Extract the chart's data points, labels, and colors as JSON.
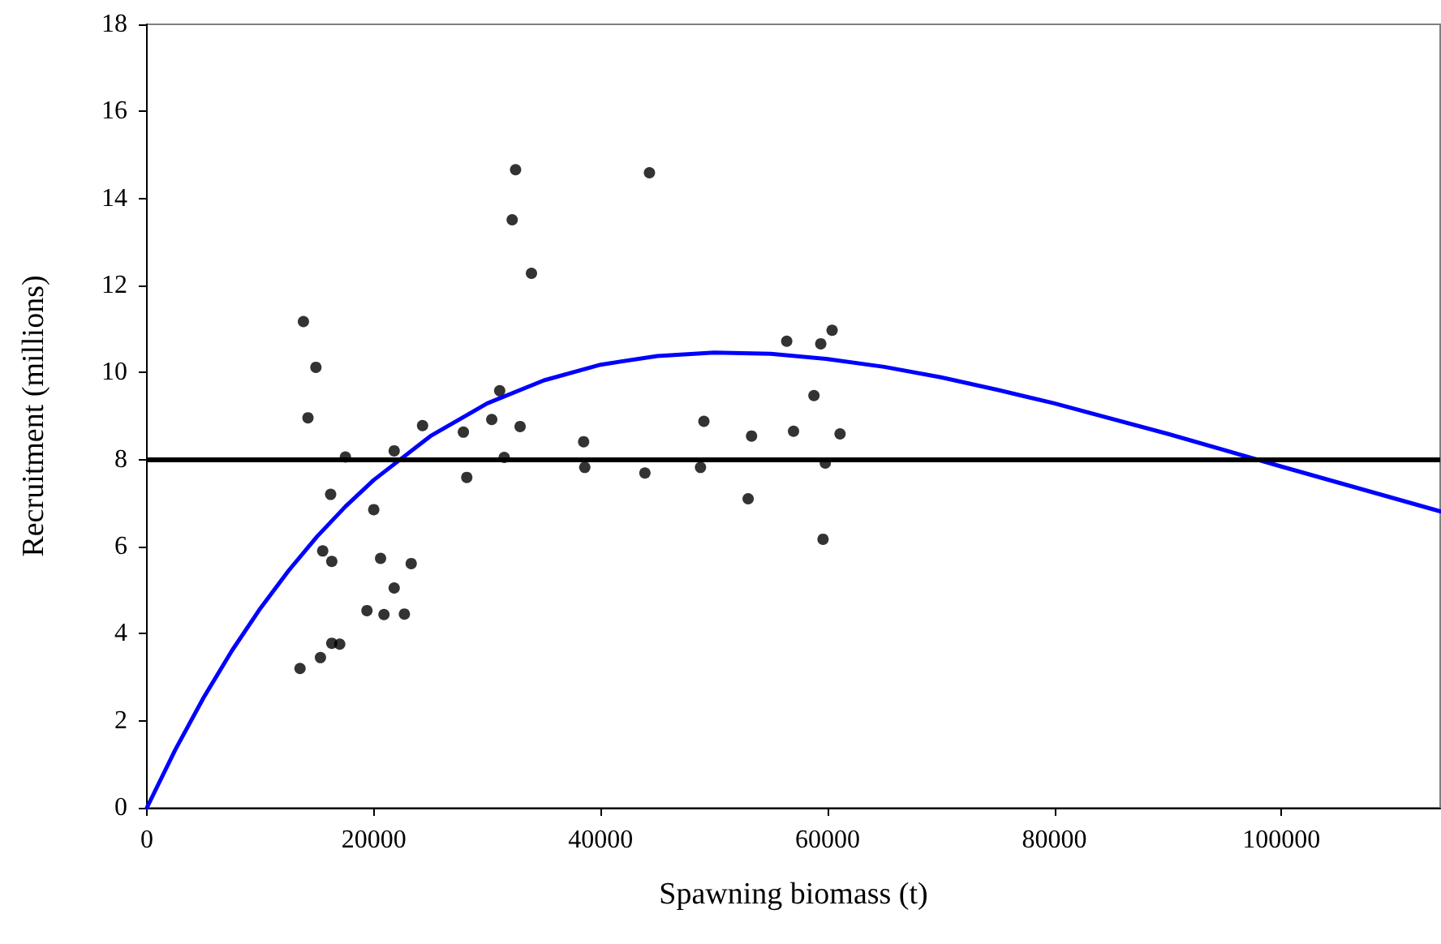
{
  "chart_data": {
    "type": "scatter",
    "xlabel": "Spawning biomass (t)",
    "ylabel": "Recruitment (millions)",
    "xlim": [
      0,
      114000
    ],
    "ylim": [
      0,
      18
    ],
    "xticks": [
      0,
      20000,
      40000,
      60000,
      80000,
      100000
    ],
    "yticks": [
      0,
      2,
      4,
      6,
      8,
      10,
      12,
      14,
      16,
      18
    ],
    "grid": false,
    "ref_lines": [
      {
        "axis": "y",
        "value": 8,
        "color": "#000000"
      }
    ],
    "series": [
      {
        "color": "#000000",
        "marker": "circle",
        "x": [
          13800,
          14900,
          14200,
          17500,
          21800,
          24300,
          27900,
          28200,
          16200,
          20000,
          15500,
          16300,
          20600,
          23300,
          21800,
          19400,
          20900,
          22700,
          16300,
          17000,
          13500,
          15300,
          32500,
          32200,
          33900,
          44300,
          30400,
          31100,
          32900,
          31500,
          38500,
          38600,
          43900,
          48800,
          49100,
          53300,
          53000,
          56400,
          57000,
          58800,
          59400,
          60400,
          61100,
          59800,
          59600
        ],
        "values": [
          11.17,
          10.12,
          8.96,
          8.06,
          8.2,
          8.78,
          8.63,
          7.59,
          7.2,
          6.85,
          5.9,
          5.66,
          5.73,
          5.61,
          5.05,
          4.53,
          4.44,
          4.45,
          3.78,
          3.76,
          3.2,
          3.45,
          14.66,
          13.51,
          12.28,
          14.59,
          8.92,
          9.58,
          8.76,
          8.05,
          8.41,
          7.82,
          7.69,
          7.82,
          8.88,
          8.54,
          7.1,
          10.72,
          8.65,
          9.47,
          10.66,
          10.97,
          8.59,
          7.92,
          6.17
        ]
      },
      {
        "type": "line",
        "color": "#0000ff",
        "marker": "none",
        "x": [
          0,
          2500,
          5000,
          7500,
          10000,
          12500,
          15000,
          17500,
          20000,
          25000,
          30000,
          35000,
          40000,
          45000,
          50000,
          55000,
          60000,
          65000,
          70000,
          75000,
          80000,
          90000,
          100000,
          114000
        ],
        "values": [
          0,
          1.33,
          2.53,
          3.61,
          4.58,
          5.45,
          6.23,
          6.92,
          7.53,
          8.54,
          9.29,
          9.82,
          10.18,
          10.38,
          10.46,
          10.43,
          10.31,
          10.13,
          9.89,
          9.6,
          9.29,
          8.59,
          7.84,
          6.81
        ]
      }
    ]
  }
}
